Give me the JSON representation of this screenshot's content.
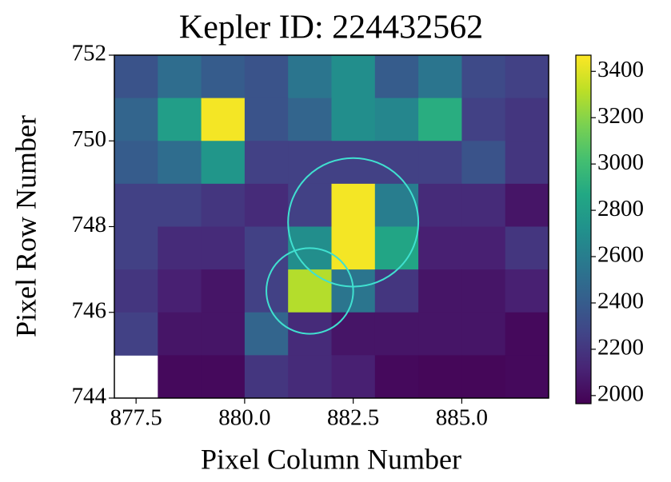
{
  "chart_data": {
    "type": "heatmap",
    "title": "Kepler ID: 224432562",
    "x_label": "Pixel Column Number",
    "y_label": "Pixel Row Number",
    "colormap": "viridis",
    "xlim": [
      877,
      887
    ],
    "ylim": [
      744,
      752
    ],
    "xticks": [
      877.5,
      {
        "value": 880,
        "label": "880.0"
      },
      882.5,
      {
        "value": 885,
        "label": "885.0"
      }
    ],
    "yticks": [
      744,
      746,
      748,
      750,
      752
    ],
    "values": [
      [
        2350,
        2500,
        2400,
        2350,
        2550,
        2700,
        2400,
        2550,
        2300,
        2250
      ],
      [
        2450,
        2800,
        3450,
        2350,
        2450,
        2700,
        2650,
        2900,
        2250,
        2200
      ],
      [
        2400,
        2500,
        2750,
        2250,
        2250,
        2250,
        2250,
        2250,
        2350,
        2200
      ],
      [
        2250,
        2250,
        2200,
        2150,
        2250,
        3450,
        2600,
        2150,
        2150,
        2050
      ],
      [
        2250,
        2150,
        2150,
        2250,
        2700,
        3450,
        2850,
        2100,
        2100,
        2200
      ],
      [
        2200,
        2100,
        2050,
        2250,
        3300,
        2550,
        2200,
        2050,
        2050,
        2100
      ],
      [
        2250,
        2050,
        2050,
        2450,
        2150,
        2050,
        2050,
        2050,
        2050,
        2000
      ],
      [
        null,
        2000,
        2000,
        2200,
        2150,
        2100,
        2000,
        1990,
        1990,
        2000
      ]
    ],
    "clim": [
      1965,
      3470
    ],
    "cticks": [
      2000,
      2200,
      2400,
      2600,
      2800,
      3000,
      3200,
      3400
    ],
    "circles": [
      {
        "x": 882.5,
        "y": 748.1,
        "r": 1.5
      },
      {
        "x": 881.5,
        "y": 746.5,
        "r": 1.0
      }
    ],
    "circle_color": "#40e0d0"
  }
}
